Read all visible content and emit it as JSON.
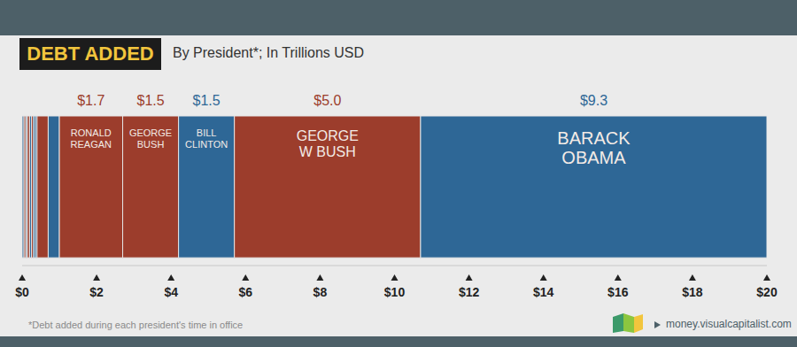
{
  "chart_data": {
    "type": "bar",
    "orientation": "horizontal",
    "stacked": true,
    "data_labels": true,
    "grid": false,
    "title": "DEBT ADDED",
    "subtitle": "By President*; In Trillions USD",
    "note": "*Debt added during each president's time in office",
    "source": "money.visualcapitalist.com",
    "xlim": [
      0,
      20
    ],
    "xticks": [
      {
        "value": 0,
        "label": "$0"
      },
      {
        "value": 2,
        "label": "$2"
      },
      {
        "value": 4,
        "label": "$4"
      },
      {
        "value": 6,
        "label": "$6"
      },
      {
        "value": 8,
        "label": "$8"
      },
      {
        "value": 10,
        "label": "$10"
      },
      {
        "value": 12,
        "label": "$12"
      },
      {
        "value": 14,
        "label": "$14"
      },
      {
        "value": 16,
        "label": "$16"
      },
      {
        "value": 18,
        "label": "$18"
      },
      {
        "value": 20,
        "label": "$20"
      }
    ],
    "series": [
      {
        "name": null,
        "color": "#2e6796",
        "values": [
          0.05
        ],
        "value_labels": [
          null
        ]
      },
      {
        "name": null,
        "color": "#9c3d2c",
        "values": [
          0.05
        ],
        "value_labels": [
          null
        ]
      },
      {
        "name": null,
        "color": "#2e6796",
        "values": [
          0.04
        ],
        "value_labels": [
          null
        ]
      },
      {
        "name": null,
        "color": "#9c3d2c",
        "values": [
          0.06
        ],
        "value_labels": [
          null
        ]
      },
      {
        "name": null,
        "color": "#2e6796",
        "values": [
          0.05
        ],
        "value_labels": [
          null
        ]
      },
      {
        "name": null,
        "color": "#9c3d2c",
        "values": [
          0.05
        ],
        "value_labels": [
          null
        ]
      },
      {
        "name": null,
        "color": "#2e6796",
        "values": [
          0.05
        ],
        "value_labels": [
          null
        ]
      },
      {
        "name": null,
        "color": "#2e6796",
        "values": [
          0.05
        ],
        "value_labels": [
          null
        ]
      },
      {
        "name": null,
        "color": "#9c3d2c",
        "values": [
          0.3
        ],
        "value_labels": [
          null
        ]
      },
      {
        "name": null,
        "color": "#2e6796",
        "values": [
          0.3
        ],
        "value_labels": [
          null
        ]
      },
      {
        "name": "RONALD REAGAN",
        "color": "#9c3d2c",
        "values": [
          1.7
        ],
        "value_labels": [
          "$1.7"
        ]
      },
      {
        "name": "GEORGE BUSH",
        "color": "#9c3d2c",
        "values": [
          1.5
        ],
        "value_labels": [
          "$1.5"
        ]
      },
      {
        "name": "BILL CLINTON",
        "color": "#2e6796",
        "values": [
          1.5
        ],
        "value_labels": [
          "$1.5"
        ]
      },
      {
        "name": "GEORGE W BUSH",
        "color": "#9c3d2c",
        "values": [
          5.0
        ],
        "value_labels": [
          "$5.0"
        ]
      },
      {
        "name": "BARACK OBAMA",
        "color": "#2e6796",
        "values": [
          9.3
        ],
        "value_labels": [
          "$9.3"
        ]
      }
    ]
  }
}
